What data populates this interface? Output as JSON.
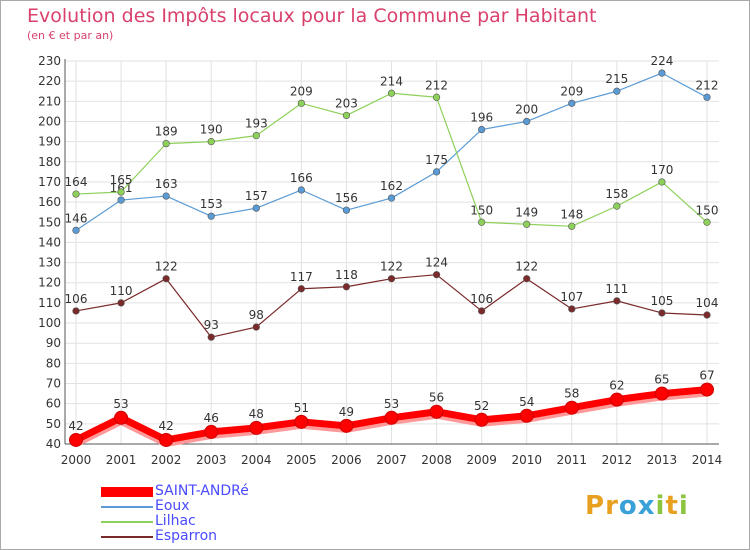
{
  "title": "Evolution des Impôts locaux pour la Commune par Habitant",
  "subtitle": "(en € et par an)",
  "logo": {
    "text": "Proxiti",
    "letters": [
      "P",
      "r",
      "o",
      "x",
      "i",
      "t",
      "i"
    ],
    "colors": [
      "#e8a021",
      "#e8a021",
      "#3aa0d8",
      "#3aa0d8",
      "#8cc63f",
      "#e8a021",
      "#8cc63f"
    ]
  },
  "chart_data": {
    "type": "line",
    "title": "Evolution des Impôts locaux pour la Commune par Habitant",
    "subtitle": "(en € et par an)",
    "x": [
      2000,
      2001,
      2002,
      2003,
      2004,
      2005,
      2006,
      2007,
      2008,
      2009,
      2010,
      2011,
      2012,
      2013,
      2014
    ],
    "ylim": [
      40,
      230
    ],
    "yticks": [
      40,
      50,
      60,
      70,
      80,
      90,
      100,
      110,
      120,
      130,
      140,
      150,
      160,
      170,
      180,
      190,
      200,
      210,
      220,
      230
    ],
    "grid": true,
    "legend_position": "bottom-left",
    "series": [
      {
        "name": "SAINT-ANDRé",
        "color": "#ff0000",
        "values": [
          42,
          53,
          42,
          46,
          48,
          51,
          49,
          53,
          56,
          52,
          54,
          58,
          62,
          65,
          67
        ]
      },
      {
        "name": "Eoux",
        "color": "#5b9bd5",
        "values": [
          146,
          161,
          163,
          153,
          157,
          166,
          156,
          162,
          175,
          196,
          200,
          209,
          215,
          224,
          212
        ]
      },
      {
        "name": "Lilhac",
        "color": "#8ed15a",
        "values": [
          164,
          165,
          189,
          190,
          193,
          209,
          203,
          214,
          212,
          150,
          149,
          148,
          158,
          170,
          150
        ]
      },
      {
        "name": "Esparron",
        "color": "#7a2a2a",
        "values": [
          106,
          110,
          122,
          93,
          98,
          117,
          118,
          122,
          124,
          106,
          122,
          107,
          111,
          105,
          104
        ]
      }
    ]
  }
}
